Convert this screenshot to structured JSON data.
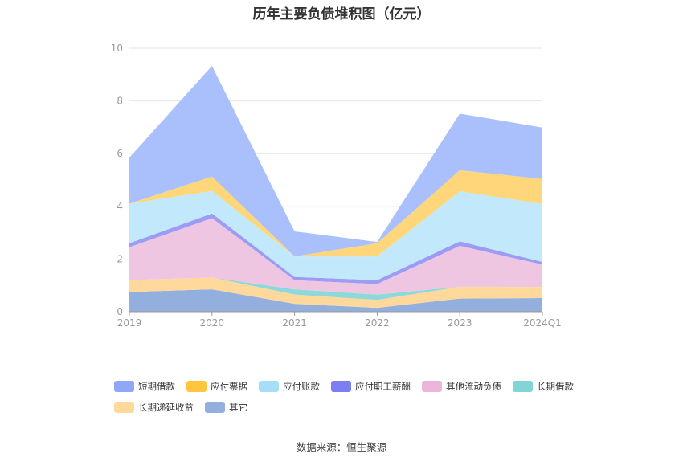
{
  "chart_data": {
    "type": "area",
    "stacked": true,
    "title": "历年主要负债堆积图（亿元）",
    "categories": [
      "2019",
      "2020",
      "2021",
      "2022",
      "2023",
      "2024Q1"
    ],
    "ylim": [
      0,
      10
    ],
    "yticks": [
      0,
      2,
      4,
      6,
      8,
      10
    ],
    "grid": true,
    "legend_position": "bottom",
    "series": [
      {
        "name": "其它",
        "color": "#93afdd",
        "values": [
          0.75,
          0.85,
          0.3,
          0.15,
          0.5,
          0.52
        ]
      },
      {
        "name": "长期递延收益",
        "color": "#ffd89b",
        "values": [
          0.45,
          0.45,
          0.35,
          0.3,
          0.45,
          0.42
        ]
      },
      {
        "name": "长期借款",
        "color": "#8dd8d8",
        "values": [
          0.0,
          0.0,
          0.2,
          0.2,
          0.0,
          0.0
        ]
      },
      {
        "name": "其他流动负债",
        "color": "#efc6e2",
        "values": [
          1.25,
          2.25,
          0.35,
          0.4,
          1.55,
          0.85
        ]
      },
      {
        "name": "应付职工薪酬",
        "color": "#9c9cf4",
        "values": [
          0.15,
          0.18,
          0.12,
          0.15,
          0.17,
          0.1
        ]
      },
      {
        "name": "应付账款",
        "color": "#c2e9fb",
        "values": [
          1.5,
          0.85,
          0.78,
          0.9,
          1.9,
          2.2
        ]
      },
      {
        "name": "应付票据",
        "color": "#ffd77a",
        "values": [
          0.0,
          0.55,
          0.0,
          0.5,
          0.8,
          0.95
        ]
      },
      {
        "name": "短期借款",
        "color": "#a9c0fd",
        "values": [
          1.75,
          4.2,
          0.95,
          0.05,
          2.15,
          1.95
        ]
      }
    ]
  },
  "legend": [
    {
      "label": "短期借款",
      "color": "#8ea8f7"
    },
    {
      "label": "应付票据",
      "color": "#ffc53d"
    },
    {
      "label": "应付账款",
      "color": "#a6def7"
    },
    {
      "label": "应付职工薪酬",
      "color": "#7b7ff0"
    },
    {
      "label": "其他流动负债",
      "color": "#ebb6d9"
    },
    {
      "label": "长期借款",
      "color": "#83d4d4"
    },
    {
      "label": "长期递延收益",
      "color": "#ffd89b"
    },
    {
      "label": "其它",
      "color": "#93afdd"
    }
  ],
  "source_text": "数据来源：恒生聚源"
}
